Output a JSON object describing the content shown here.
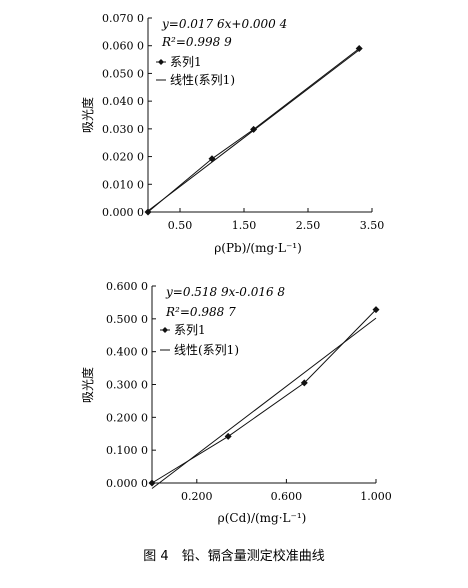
{
  "chart_data": [
    {
      "type": "scatter",
      "title": "",
      "xlabel": "ρ(Pb)/(mg·L⁻¹)",
      "ylabel": "吸光度",
      "xlim": [
        0,
        3.5
      ],
      "ylim": [
        0,
        0.07
      ],
      "x_ticks": [
        "0.50",
        "1.50",
        "2.50",
        "3.50"
      ],
      "x_tick_values": [
        0.5,
        1.5,
        2.5,
        3.5
      ],
      "y_ticks": [
        "0.000 0",
        "0.010 0",
        "0.020 0",
        "0.030 0",
        "0.040 0",
        "0.050 0",
        "0.060 0",
        "0.070 0"
      ],
      "y_tick_values": [
        0,
        0.01,
        0.02,
        0.03,
        0.04,
        0.05,
        0.06,
        0.07
      ],
      "annotations": [
        "y=0.017 6x+0.000 4",
        "R²=0.998 9"
      ],
      "series": [
        {
          "name": "系列1",
          "x": [
            0,
            1.0,
            1.65,
            3.3
          ],
          "y": [
            0.0,
            0.0192,
            0.0298,
            0.059
          ]
        },
        {
          "name": "线性(系列1)",
          "x": [
            0,
            3.3
          ],
          "y": [
            0.0004,
            0.0585
          ]
        }
      ],
      "grid": false,
      "legend": "top-left"
    },
    {
      "type": "scatter",
      "title": "",
      "xlabel": "ρ(Cd)/(mg·L⁻¹)",
      "ylabel": "吸光度",
      "xlim": [
        0,
        1.0
      ],
      "ylim": [
        0,
        0.6
      ],
      "x_ticks": [
        "0.200",
        "0.600",
        "1.000"
      ],
      "x_tick_values": [
        0.2,
        0.6,
        1.0
      ],
      "y_ticks": [
        "0.000 0",
        "0.100 0",
        "0.200 0",
        "0.300 0",
        "0.400 0",
        "0.500 0",
        "0.600 0"
      ],
      "y_tick_values": [
        0,
        0.1,
        0.2,
        0.3,
        0.4,
        0.5,
        0.6
      ],
      "annotations": [
        "y=0.518 9x-0.016 8",
        "R²=0.988 7"
      ],
      "series": [
        {
          "name": "系列1",
          "x": [
            0,
            0.34,
            0.68,
            1.0
          ],
          "y": [
            0.0,
            0.142,
            0.305,
            0.528
          ]
        },
        {
          "name": "线性(系列1)",
          "x": [
            0,
            1.0
          ],
          "y": [
            -0.0168,
            0.5021
          ]
        }
      ],
      "grid": false,
      "legend": "top-left"
    }
  ],
  "caption": "图 4　铅、镉含量测定校准曲线"
}
